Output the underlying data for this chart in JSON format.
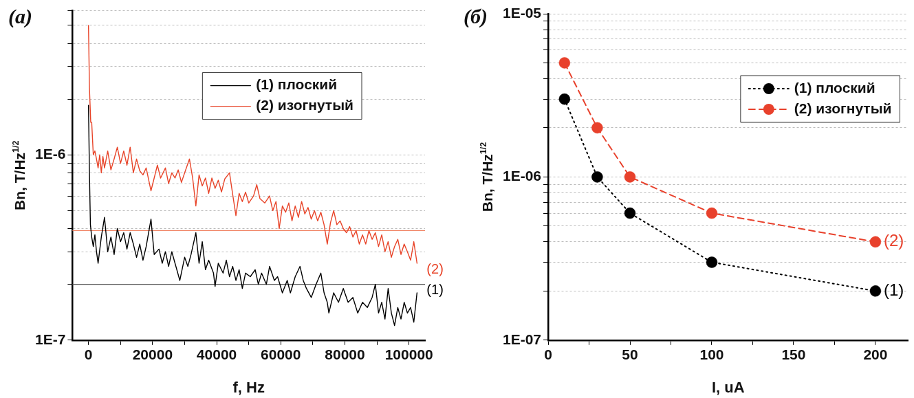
{
  "chart_data": [
    {
      "type": "line",
      "title": "(a)",
      "xlabel": "f, Hz",
      "ylabel": "Bn, T/Hz$^{1/2}$",
      "log": "y",
      "grid": "y",
      "legend": "top right",
      "xlim": [
        -5000,
        105000
      ],
      "xticks": [
        0,
        {
          "value": 10000,
          "label": null
        },
        20000,
        {
          "value": 30000,
          "label": null
        },
        40000,
        {
          "value": 50000,
          "label": null
        },
        60000,
        {
          "value": 70000,
          "label": null
        },
        80000,
        {
          "value": 90000,
          "label": null
        },
        100000
      ],
      "ylim": [
        1e-07,
        6e-06
      ],
      "yticks": [
        {
          "value": 1e-07,
          "label": "1E-7"
        },
        {
          "value": 2e-07,
          "label": null
        },
        {
          "value": 3e-07,
          "label": null
        },
        {
          "value": 4e-07,
          "label": null
        },
        {
          "value": 5e-07,
          "label": null
        },
        {
          "value": 6e-07,
          "label": null
        },
        {
          "value": 7e-07,
          "label": null
        },
        {
          "value": 8e-07,
          "label": null
        },
        {
          "value": 9e-07,
          "label": null
        },
        {
          "value": 1e-06,
          "label": "1E-6"
        },
        {
          "value": 2e-06,
          "label": null
        },
        {
          "value": 3e-06,
          "label": null
        },
        {
          "value": 4e-06,
          "label": null
        },
        {
          "value": 5e-06,
          "label": null
        },
        {
          "value": 6e-06,
          "label": null
        }
      ],
      "ref_lines": [
        {
          "axis": "y",
          "value": 2e-07,
          "color": "#555555"
        },
        {
          "axis": "y",
          "value": 3.9e-07,
          "color": "#f08060"
        }
      ],
      "series": [
        {
          "name": "(1) плоский",
          "color": "#000000",
          "x": [
            0,
            300,
            600,
            1000,
            1500,
            2000,
            2500,
            3000,
            4000,
            5000,
            6000,
            7000,
            8000,
            9000,
            10000,
            11000,
            12000,
            13000,
            14000,
            15000,
            16000,
            17000,
            18000,
            19500,
            20500,
            22000,
            23000,
            24000,
            25000,
            26000,
            27000,
            28500,
            30000,
            31000,
            32000,
            33500,
            34500,
            35500,
            36500,
            37500,
            39000,
            39500,
            40500,
            42000,
            43000,
            44000,
            45000,
            46000,
            47000,
            48000,
            49000,
            50500,
            52000,
            53000,
            54000,
            55500,
            56500,
            58000,
            59000,
            60500,
            62000,
            63000,
            64500,
            66000,
            67000,
            68000,
            69500,
            71000,
            72500,
            73500,
            74500,
            75000,
            76500,
            78000,
            79500,
            81000,
            82500,
            84000,
            85500,
            87000,
            88500,
            89500,
            90500,
            91500,
            92500,
            93500,
            94500,
            95500,
            96500,
            97500,
            98500,
            99500,
            100500,
            101500,
            102500
          ],
          "values": [
            1.85e-06,
            8e-07,
            4.2e-07,
            3.6e-07,
            3.2e-07,
            3.7e-07,
            3e-07,
            2.6e-07,
            3.6e-07,
            4.6e-07,
            3e-07,
            3.6e-07,
            2.9e-07,
            4e-07,
            3.4e-07,
            3.8e-07,
            3.1e-07,
            3.8e-07,
            3.3e-07,
            2.8e-07,
            3.3e-07,
            2.7e-07,
            3.2e-07,
            4.5e-07,
            2.9e-07,
            3.1e-07,
            2.6e-07,
            3e-07,
            2.5e-07,
            3e-07,
            2.6e-07,
            2.1e-07,
            2.8e-07,
            2.5e-07,
            2.9e-07,
            3.8e-07,
            2.6e-07,
            3.4e-07,
            2.4e-07,
            2.7e-07,
            2.3e-07,
            1.95e-07,
            2.6e-07,
            2.3e-07,
            2.7e-07,
            2.2e-07,
            2.5e-07,
            2.1e-07,
            2.4e-07,
            1.9e-07,
            2.3e-07,
            2.2e-07,
            2.4e-07,
            2e-07,
            2.3e-07,
            2e-07,
            2.5e-07,
            2.1e-07,
            2.2e-07,
            1.8e-07,
            2.1e-07,
            1.8e-07,
            2.2e-07,
            2.5e-07,
            2.1e-07,
            1.9e-07,
            1.7e-07,
            2e-07,
            2.3e-07,
            1.8e-07,
            1.6e-07,
            1.4e-07,
            1.8e-07,
            1.6e-07,
            1.9e-07,
            1.6e-07,
            1.7e-07,
            1.4e-07,
            1.6e-07,
            1.5e-07,
            1.7e-07,
            2e-07,
            1.4e-07,
            1.6e-07,
            1.3e-07,
            1.9e-07,
            1.4e-07,
            1.2e-07,
            1.5e-07,
            1.3e-07,
            1.6e-07,
            1.4e-07,
            1.5e-07,
            1.25e-07,
            1.8e-07
          ]
        },
        {
          "name": "(2) изогнутый",
          "color": "#e8452a",
          "x": [
            0,
            300,
            700,
            1000,
            1500,
            2000,
            2500,
            3000,
            3500,
            4000,
            4500,
            5000,
            6000,
            7000,
            8000,
            9000,
            10000,
            11000,
            12000,
            13000,
            14000,
            15000,
            16000,
            17000,
            18000,
            19500,
            20500,
            21500,
            22500,
            24000,
            25000,
            26000,
            27000,
            28000,
            29000,
            30000,
            31500,
            32500,
            33500,
            34500,
            35500,
            36500,
            37500,
            38500,
            39500,
            40500,
            41500,
            42500,
            44000,
            45000,
            46000,
            47000,
            48000,
            49000,
            50000,
            51500,
            52500,
            53500,
            55000,
            56500,
            57500,
            58500,
            59500,
            60500,
            61500,
            62500,
            63500,
            64500,
            65500,
            66500,
            67500,
            68500,
            69500,
            70500,
            71500,
            72500,
            73500,
            74500,
            75500,
            76500,
            77500,
            78500,
            79500,
            80500,
            81500,
            82500,
            83500,
            84500,
            85500,
            86500,
            87500,
            88500,
            89500,
            90500,
            91500,
            92500,
            93500,
            94500,
            95500,
            96500,
            97500,
            98500,
            99500,
            100500,
            101500,
            102500
          ],
          "values": [
            5e-06,
            2.3e-06,
            1.5e-06,
            1.5e-06,
            1e-06,
            1.05e-06,
            9.5e-07,
            8.5e-07,
            1e-06,
            8e-07,
            9.8e-07,
            8.5e-07,
            1.05e-06,
            8.3e-07,
            9.5e-07,
            1.1e-06,
            9e-07,
            1.05e-06,
            8.8e-07,
            1.1e-06,
            8e-07,
            9.5e-07,
            8.2e-07,
            7.8e-07,
            8.5e-07,
            6.4e-07,
            7.5e-07,
            8.8e-07,
            7.5e-07,
            8.5e-07,
            7e-07,
            8e-07,
            7.5e-07,
            8.3e-07,
            7.1e-07,
            8e-07,
            9.5e-07,
            7.5e-07,
            5.3e-07,
            7.8e-07,
            6.8e-07,
            7.5e-07,
            6.2e-07,
            7.5e-07,
            6.6e-07,
            7.3e-07,
            6.3e-07,
            7.4e-07,
            8e-07,
            6.1e-07,
            4.7e-07,
            6.2e-07,
            5.6e-07,
            6.3e-07,
            5.5e-07,
            6e-07,
            6.9e-07,
            5.8e-07,
            5.5e-07,
            6e-07,
            5e-07,
            5.6e-07,
            4e-07,
            5.3e-07,
            4.9e-07,
            5.5e-07,
            4.4e-07,
            5.3e-07,
            4.6e-07,
            5.6e-07,
            4.8e-07,
            5.2e-07,
            4.5e-07,
            5e-07,
            4.4e-07,
            4.9e-07,
            4.2e-07,
            3.3e-07,
            4.3e-07,
            5e-07,
            4.2e-07,
            4.4e-07,
            4e-07,
            3.8e-07,
            4.1e-07,
            3.6e-07,
            3.9e-07,
            3.3e-07,
            3.7e-07,
            3.3e-07,
            3.9e-07,
            3.5e-07,
            3.8e-07,
            3.2e-07,
            3.7e-07,
            3e-07,
            3.4e-07,
            2.8e-07,
            3.2e-07,
            3.5e-07,
            2.9e-07,
            3.3e-07,
            3e-07,
            2.7e-07,
            3.4e-07,
            2.6e-07
          ]
        }
      ],
      "annotations": [
        "(1)",
        "(2)"
      ]
    },
    {
      "type": "line",
      "title": "(б)",
      "xlabel": "I, uA",
      "ylabel": "Bn, T/Hz$^{1/2}$",
      "log": "y",
      "grid": "y",
      "legend": "top right",
      "marker": "circle",
      "x": [
        10,
        30,
        50,
        100,
        200
      ],
      "xlim": [
        0,
        220
      ],
      "xticks": [
        0,
        {
          "value": 25,
          "label": null
        },
        50,
        {
          "value": 75,
          "label": null
        },
        100,
        {
          "value": 125,
          "label": null
        },
        150,
        {
          "value": 175,
          "label": null
        },
        200
      ],
      "ylim": [
        1e-07,
        1e-05
      ],
      "yticks": [
        {
          "value": 1e-07,
          "label": "1E-07"
        },
        {
          "value": 2e-07,
          "label": null
        },
        {
          "value": 3e-07,
          "label": null
        },
        {
          "value": 4e-07,
          "label": null
        },
        {
          "value": 5e-07,
          "label": null
        },
        {
          "value": 6e-07,
          "label": null
        },
        {
          "value": 7e-07,
          "label": null
        },
        {
          "value": 8e-07,
          "label": null
        },
        {
          "value": 9e-07,
          "label": null
        },
        {
          "value": 1e-06,
          "label": "1E-06"
        },
        {
          "value": 2e-06,
          "label": null
        },
        {
          "value": 3e-06,
          "label": null
        },
        {
          "value": 4e-06,
          "label": null
        },
        {
          "value": 5e-06,
          "label": null
        },
        {
          "value": 6e-06,
          "label": null
        },
        {
          "value": 7e-06,
          "label": null
        },
        {
          "value": 8e-06,
          "label": null
        },
        {
          "value": 9e-06,
          "label": null
        },
        {
          "value": 1e-05,
          "label": "1E-05"
        }
      ],
      "series": [
        {
          "name": "(1) плоский",
          "color": "#000000",
          "line_style": "dotted",
          "values": [
            3e-06,
            1e-06,
            6e-07,
            3e-07,
            2e-07
          ]
        },
        {
          "name": "(2) изогнутый",
          "color": "#e8412c",
          "line_style": "dashed",
          "values": [
            5e-06,
            2e-06,
            1e-06,
            6e-07,
            4e-07
          ]
        }
      ],
      "annotations": [
        "(1)",
        "(2)"
      ]
    }
  ]
}
